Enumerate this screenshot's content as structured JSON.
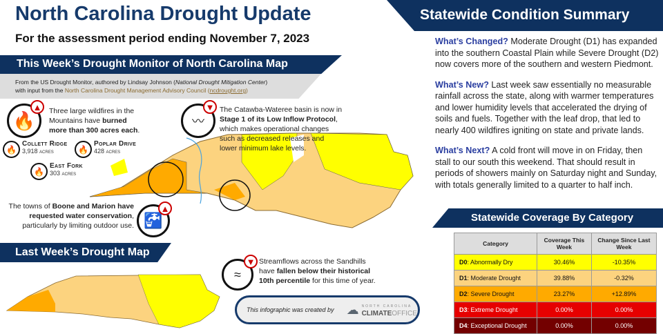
{
  "header": {
    "title": "North Carolina Drought Update",
    "subtitle": "For the assessment period ending November 7, 2023"
  },
  "map_section": {
    "banner": "This Week’s Drought Monitor of North Carolina Map",
    "credit_line1_a": "From the US Drought Monitor, authored by Lindsay Johnson (",
    "credit_line1_b": "National Drought Mitigation Center",
    "credit_line1_c": ")",
    "credit_line2_a": "with input from the ",
    "credit_line2_b": "North Carolina Drought Management Advisory Council",
    "credit_line2_c": " (",
    "credit_link": "ncdrought.org",
    "credit_line2_d": ")"
  },
  "notes": {
    "wildfires": {
      "a": "Three large wildfires in the Mountains have ",
      "b": "burned more than 300 acres each",
      "c": ".",
      "trend": "up"
    },
    "fires": [
      {
        "name": "Collett Ridge",
        "acres": "3,918 acres"
      },
      {
        "name": "Poplar Drive",
        "acres": "428 acres"
      },
      {
        "name": "East Fork",
        "acres": "303 acres"
      }
    ],
    "catawba": {
      "a": "The Catawba-Wateree basin is now in ",
      "b": "Stage 1 of its Low Inflow Protocol",
      "c": ", which makes operational changes such as decreased releases and lower minimum lake levels.",
      "trend": "down"
    },
    "boone": {
      "a": "The towns of ",
      "b": "Boone and Marion have requested water conservation",
      "c": ", particularly by limiting outdoor use.",
      "trend": "up"
    },
    "streamflow": {
      "a": "Streamflows across the Sandhills have ",
      "b": "fallen below their historical 10th percentile",
      "c": " for this time of year.",
      "trend": "down"
    }
  },
  "last_week": {
    "banner": "Last Week’s Drought Map"
  },
  "summary": {
    "banner": "Statewide Condition Summary",
    "changed_label": "What’s Changed?",
    "changed": " Moderate Drought (D1) has expanded into the southern Coastal Plain while Severe Drought (D2) now covers more of the southern and western Piedmont.",
    "new_label": "What’s New?",
    "new": " Last week saw essentially no measurable rainfall across the state, along with warmer temperatures and lower humidity levels that accelerated the drying of soils and fuels. Together with the leaf drop, that led to nearly 400 wildfires igniting on state and private lands.",
    "next_label": "What’s Next?",
    "next": " A cold front will move in on Friday, then stall to our south this weekend. That should result in periods of showers mainly on Saturday night and Sunday, with totals generally limited to a quarter to half inch."
  },
  "coverage": {
    "banner": "Statewide Coverage By Category",
    "headers": [
      "Category",
      "Coverage This Week",
      "Change Since Last Week"
    ],
    "rows": [
      {
        "code": "D0",
        "name": ": Abnormally Dry",
        "coverage": "30.46%",
        "change": "-10.35%",
        "color": "#ffff00",
        "text": "#111"
      },
      {
        "code": "D1",
        "name": ": Moderate Drought",
        "coverage": "39.88%",
        "change": "-0.32%",
        "color": "#fcd37f",
        "text": "#111"
      },
      {
        "code": "D2",
        "name": ": Severe Drought",
        "coverage": "23.27%",
        "change": "+12.89%",
        "color": "#ffaa00",
        "text": "#111"
      },
      {
        "code": "D3",
        "name": ": Extreme Drought",
        "coverage": "0.00%",
        "change": "0.00%",
        "color": "#e60000",
        "text": "#fff"
      },
      {
        "code": "D4",
        "name": ": Exceptional Drought",
        "coverage": "0.00%",
        "change": "0.00%",
        "color": "#730000",
        "text": "#fff"
      }
    ]
  },
  "footer": {
    "text": "This infographic was created by",
    "logo_top": "NORTH CAROLINA",
    "logo_bold": "CLIMATE",
    "logo_light": "OFFICE"
  }
}
